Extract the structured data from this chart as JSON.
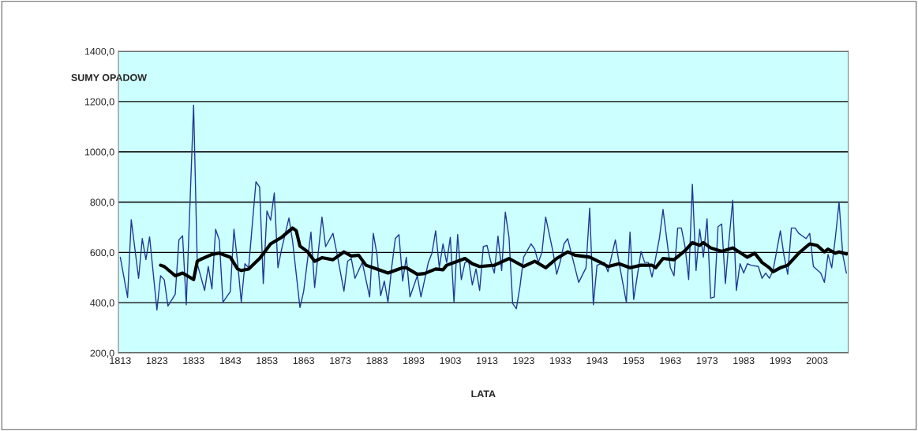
{
  "chart_data": {
    "type": "line",
    "xlabel": "LATA",
    "ylabel": "SUMY OPADOW",
    "xlim": [
      1812.5,
      2011.5
    ],
    "xticks": [
      1813,
      1823,
      1833,
      1843,
      1853,
      1863,
      1873,
      1883,
      1893,
      1903,
      1913,
      1923,
      1933,
      1943,
      1953,
      1963,
      1973,
      1983,
      1993,
      2003
    ],
    "ylim": [
      200,
      1400
    ],
    "yticks": [
      {
        "value": 200,
        "label": "200,0"
      },
      {
        "value": 400,
        "label": "400,0"
      },
      {
        "value": 600,
        "label": "600,0"
      },
      {
        "value": 800,
        "label": "800,0"
      },
      {
        "value": 1000,
        "label": "1000,0"
      },
      {
        "value": 1200,
        "label": "1200,0"
      },
      {
        "value": 1400,
        "label": "1400,0"
      }
    ],
    "grid": "y",
    "marker": "none",
    "line_style": "solid",
    "series": [
      {
        "color": "#1f3a93",
        "x": [
          1813,
          1815,
          1816,
          1818,
          1819,
          1820,
          1821,
          1823,
          1824,
          1825,
          1826,
          1828,
          1829,
          1830,
          1831,
          1833,
          1834,
          1836,
          1837,
          1838,
          1839,
          1840,
          1841,
          1843,
          1844,
          1845,
          1846,
          1847,
          1848,
          1850,
          1851,
          1852,
          1853,
          1854,
          1855,
          1856,
          1857,
          1859,
          1860,
          1862,
          1863,
          1865,
          1866,
          1868,
          1869,
          1871,
          1872,
          1874,
          1875,
          1876,
          1877,
          1879,
          1881,
          1882,
          1883,
          1884,
          1885,
          1886,
          1887,
          1888,
          1889,
          1890,
          1891,
          1892,
          1894,
          1895,
          1897,
          1898,
          1899,
          1900,
          1901,
          1902,
          1903,
          1904,
          1905,
          1906,
          1907,
          1908,
          1909,
          1910,
          1911,
          1912,
          1913,
          1914,
          1915,
          1916,
          1917,
          1918,
          1919,
          1920,
          1921,
          1922,
          1923,
          1925,
          1926,
          1927,
          1928,
          1929,
          1931,
          1932,
          1933,
          1934,
          1935,
          1937,
          1938,
          1940,
          1941,
          1942,
          1943,
          1945,
          1946,
          1948,
          1949,
          1951,
          1952,
          1953,
          1955,
          1956,
          1957,
          1958,
          1960,
          1961,
          1963,
          1964,
          1965,
          1966,
          1967,
          1968,
          1969,
          1970,
          1971,
          1972,
          1973,
          1974,
          1975,
          1976,
          1977,
          1978,
          1979,
          1980,
          1981,
          1982,
          1983,
          1984,
          1985,
          1987,
          1988,
          1989,
          1990,
          1991,
          1993,
          1994,
          1995,
          1996,
          1997,
          1998,
          2000,
          2001,
          2002,
          2004,
          2005,
          2006,
          2007,
          2008,
          2009,
          2010,
          2011
        ],
        "values": [
          581,
          421,
          730,
          497,
          655,
          572,
          662,
          371,
          507,
          491,
          387,
          434,
          650,
          666,
          392,
          1186,
          555,
          449,
          544,
          455,
          692,
          650,
          402,
          444,
          692,
          560,
          402,
          555,
          539,
          881,
          860,
          476,
          765,
          728,
          836,
          539,
          613,
          737,
          644,
          381,
          444,
          681,
          460,
          741,
          623,
          676,
          602,
          446,
          565,
          576,
          497,
          560,
          423,
          676,
          592,
          428,
          486,
          402,
          539,
          655,
          671,
          486,
          581,
          423,
          507,
          423,
          560,
          597,
          686,
          539,
          634,
          560,
          660,
          402,
          671,
          492,
          560,
          565,
          471,
          534,
          449,
          623,
          628,
          565,
          518,
          665,
          528,
          760,
          660,
          397,
          376,
          465,
          581,
          634,
          613,
          560,
          602,
          741,
          602,
          513,
          565,
          634,
          655,
          539,
          481,
          539,
          776,
          392,
          549,
          560,
          523,
          650,
          560,
          402,
          681,
          413,
          604,
          560,
          560,
          502,
          655,
          771,
          539,
          507,
          697,
          697,
          623,
          492,
          871,
          528,
          692,
          581,
          734,
          418,
          423,
          702,
          713,
          476,
          650,
          807,
          449,
          555,
          518,
          555,
          549,
          544,
          497,
          518,
          497,
          528,
          686,
          586,
          513,
          697,
          697,
          676,
          655,
          676,
          544,
          518,
          481,
          592,
          539,
          660,
          800,
          592,
          518
        ]
      },
      {
        "color": "#000000",
        "x": [
          1824,
          1825,
          1828,
          1830,
          1833,
          1834,
          1835,
          1838,
          1840,
          1843,
          1845,
          1846,
          1848,
          1851,
          1854,
          1857,
          1860,
          1861,
          1862,
          1864,
          1866,
          1868,
          1871,
          1874,
          1876,
          1878,
          1880,
          1883,
          1886,
          1890,
          1891,
          1894,
          1896,
          1899,
          1901,
          1902,
          1905,
          1907,
          1909,
          1911,
          1915,
          1919,
          1923,
          1926,
          1929,
          1932,
          1935,
          1937,
          1941,
          1944,
          1946,
          1949,
          1952,
          1955,
          1958,
          1959,
          1961,
          1964,
          1967,
          1969,
          1971,
          1972,
          1974,
          1977,
          1980,
          1984,
          1986,
          1988,
          1990,
          1991,
          1993,
          1995,
          1998,
          2001,
          2003,
          2005,
          2006,
          2008,
          2009,
          2011
        ],
        "values": [
          549,
          544,
          507,
          518,
          492,
          565,
          573,
          592,
          597,
          581,
          534,
          528,
          534,
          576,
          634,
          660,
          697,
          686,
          625,
          604,
          565,
          579,
          571,
          602,
          586,
          589,
          549,
          534,
          518,
          539,
          539,
          513,
          516,
          534,
          531,
          549,
          565,
          576,
          555,
          544,
          549,
          576,
          544,
          565,
          539,
          576,
          602,
          589,
          581,
          560,
          544,
          555,
          539,
          549,
          549,
          539,
          576,
          571,
          607,
          639,
          628,
          639,
          618,
          604,
          618,
          581,
          597,
          560,
          539,
          523,
          539,
          549,
          597,
          634,
          628,
          602,
          613,
          597,
          602,
          594
        ]
      }
    ]
  }
}
